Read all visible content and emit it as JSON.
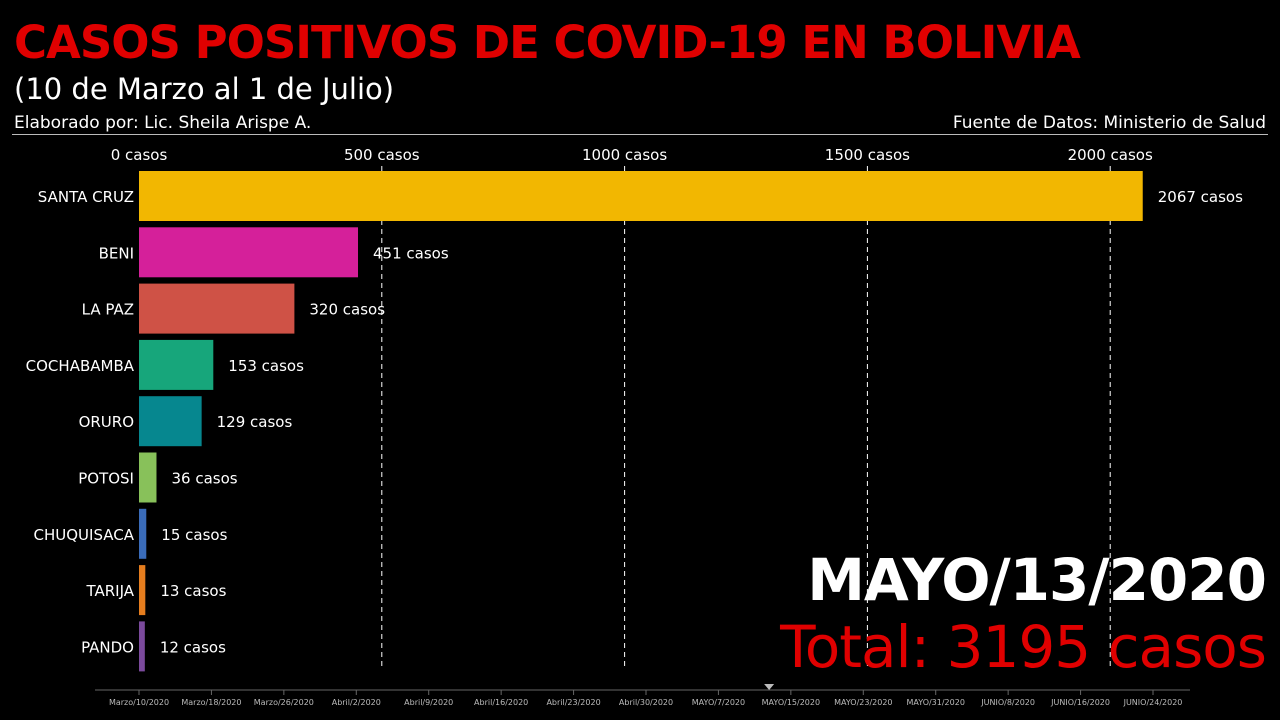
{
  "header": {
    "title": "CASOS POSITIVOS DE COVID-19 EN BOLIVIA",
    "subtitle": "(10 de Marzo al 1 de Julio)",
    "author": "Elaborado por: Lic. Sheila Arispe A.",
    "source": "Fuente de Datos: Ministerio de Salud"
  },
  "overlay": {
    "date": "MAYO/13/2020",
    "total": "Total: 3195 casos"
  },
  "timeline": {
    "labels": [
      "Marzo/10/2020",
      "Marzo/18/2020",
      "Marzo/26/2020",
      "Abril/2/2020",
      "Abril/9/2020",
      "Abril/16/2020",
      "Abril/23/2020",
      "Abril/30/2020",
      "MAYO/7/2020",
      "MAYO/15/2020",
      "MAYO/23/2020",
      "MAYO/31/2020",
      "JUNIO/8/2020",
      "JUNIO/16/2020",
      "JUNIO/24/2020"
    ],
    "current": "MAYO/13/2020"
  },
  "chart_data": {
    "type": "bar",
    "orientation": "horizontal",
    "categories": [
      "SANTA CRUZ",
      "BENI",
      "LA PAZ",
      "COCHABAMBA",
      "ORURO",
      "POTOSI",
      "CHUQUISACA",
      "TARIJA",
      "PANDO"
    ],
    "values": [
      2067,
      451,
      320,
      153,
      129,
      36,
      15,
      13,
      12
    ],
    "value_labels": [
      "2067 casos",
      "451 casos",
      "320 casos",
      "153 casos",
      "129 casos",
      "36 casos",
      "15 casos",
      "13 casos",
      "12 casos"
    ],
    "colors": [
      "#f2b701",
      "#d5209a",
      "#cf5246",
      "#17a67b",
      "#06878f",
      "#88c15a",
      "#3a6cba",
      "#e57d1e",
      "#7b4a9c"
    ],
    "xticks": [
      0,
      500,
      1000,
      1500,
      2000
    ],
    "xtick_labels": [
      "0 casos",
      "500 casos",
      "1000 casos",
      "1500 casos",
      "2000 casos"
    ],
    "xlim": [
      0,
      2130
    ],
    "grid": "vertical dashed",
    "axis_position": "top"
  }
}
